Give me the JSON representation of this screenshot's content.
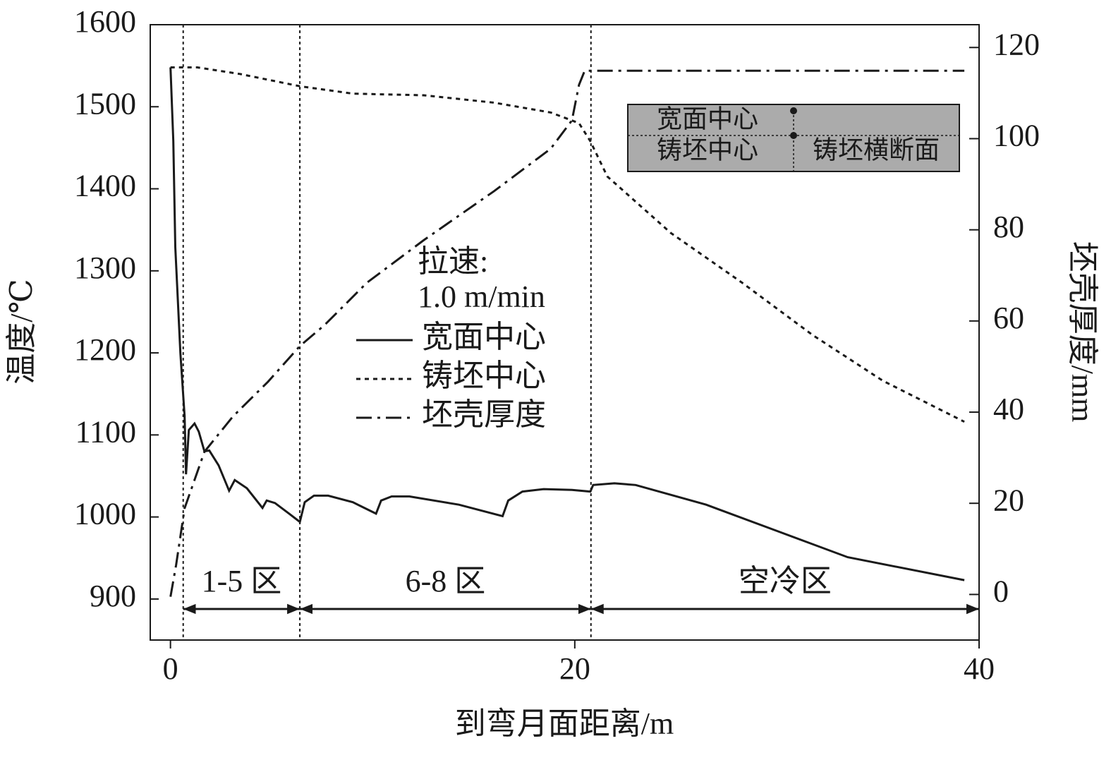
{
  "chart_data": {
    "type": "line",
    "xlabel": "到弯月面距离/m",
    "ylabel": "温度/℃",
    "y2label": "坯壳厚度/mm",
    "xlim": [
      -1,
      40
    ],
    "xticks": [
      0,
      20,
      40
    ],
    "ylim": [
      850,
      1600
    ],
    "yticks": [
      900,
      1000,
      1100,
      1200,
      1300,
      1400,
      1500,
      1600
    ],
    "y2lim": [
      -10,
      125
    ],
    "y2ticks": [
      0,
      20,
      40,
      60,
      80,
      100,
      120
    ],
    "annotations": [
      "拉速:",
      "1.0 m/min"
    ],
    "series": [
      {
        "name": "宽面中心",
        "color": "#1a1a1a",
        "style": "solid",
        "x": [
          0,
          0.14,
          0.24,
          0.49,
          0.7,
          0.77,
          0.91,
          1.19,
          1.4,
          1.68,
          1.92,
          2.38,
          2.9,
          3.18,
          3.78,
          4.55,
          4.76,
          5.17,
          5.87,
          6.4,
          6.64,
          7.1,
          7.8,
          9.02,
          10.17,
          10.42,
          10.94,
          11.82,
          14.27,
          16.43,
          16.71,
          17.41,
          18.46,
          19.86,
          20.77,
          20.91,
          21.96,
          23.01,
          26.5,
          30.0,
          33.5,
          39.27
        ],
        "values": [
          1548,
          1458,
          1329,
          1200,
          1123,
          1052,
          1106,
          1114,
          1104,
          1080,
          1081,
          1063,
          1032,
          1045,
          1035,
          1011,
          1020,
          1017,
          1004,
          994,
          1018,
          1026,
          1026,
          1018,
          1004,
          1020,
          1025,
          1025,
          1015,
          1001,
          1020,
          1031,
          1034,
          1033,
          1031,
          1039,
          1041,
          1039,
          1015,
          983,
          951,
          923
        ]
      },
      {
        "name": "铸坯中心",
        "color": "#1a1a1a",
        "style": "dashed",
        "x": [
          0,
          1.33,
          3.43,
          6.4,
          9.02,
          12.52,
          16.01,
          18.81,
          20.21,
          20.77,
          21.61,
          24.76,
          28.25,
          31.75,
          35.24,
          39.27
        ],
        "values": [
          1548,
          1548,
          1540,
          1525,
          1516,
          1514,
          1505,
          1493,
          1480,
          1458,
          1415,
          1346,
          1286,
          1222,
          1166,
          1116
        ]
      },
      {
        "name": "坯壳厚度",
        "color": "#1a1a1a",
        "style": "dashdot",
        "axis": "y2",
        "x": [
          0,
          0.28,
          0.7,
          1.68,
          3.08,
          4.83,
          6.4,
          7.62,
          9.72,
          12.52,
          16.01,
          18.81,
          19.86,
          20.21,
          20.49,
          39.27
        ],
        "values": [
          -0.5,
          6.5,
          18.9,
          31.3,
          39,
          46.7,
          54.5,
          59.1,
          68.4,
          77.7,
          88.5,
          97.8,
          104,
          111.8,
          114.9,
          114.9
        ]
      }
    ],
    "zones": [
      {
        "label": "1-5 区",
        "from": 0.63,
        "to": 6.4
      },
      {
        "label": "6-8 区",
        "from": 6.4,
        "to": 20.8
      },
      {
        "label": "空冷区",
        "from": 20.8,
        "to": 40
      }
    ],
    "inset": {
      "top_label": "宽面中心",
      "bottom_label": "铸坯中心",
      "section_label": "铸坯横断面"
    }
  }
}
